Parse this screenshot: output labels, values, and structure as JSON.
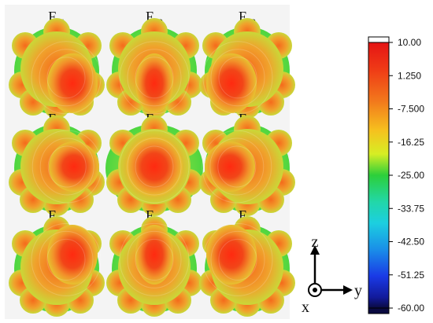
{
  "patterns": [
    {
      "id": "F11",
      "base": "F",
      "sub": "11"
    },
    {
      "id": "F12",
      "base": "F",
      "sub": "12"
    },
    {
      "id": "F13",
      "base": "F",
      "sub": "13"
    },
    {
      "id": "F21",
      "base": "F",
      "sub": "21"
    },
    {
      "id": "F22",
      "base": "F",
      "sub": "22"
    },
    {
      "id": "F23",
      "base": "F",
      "sub": "23"
    },
    {
      "id": "F31",
      "base": "F",
      "sub": "31"
    },
    {
      "id": "F32",
      "base": "F",
      "sub": "32"
    },
    {
      "id": "F33",
      "base": "F",
      "sub": "33"
    }
  ],
  "axes": {
    "z": "z",
    "y": "y",
    "x": "x"
  },
  "colorbar": {
    "ticks": [
      "10.00",
      "1.250",
      "-7.500",
      "-16.25",
      "-25.00",
      "-33.75",
      "-42.50",
      "-51.25",
      "-60.00"
    ],
    "max": 10,
    "min": -60,
    "colors": [
      "#ffffff",
      "#e8141a",
      "#f06a1a",
      "#f5b21c",
      "#e6ec22",
      "#22c93a",
      "#20d8d0",
      "#1a86e8",
      "#1a2fe0",
      "#0a0a40"
    ]
  }
}
